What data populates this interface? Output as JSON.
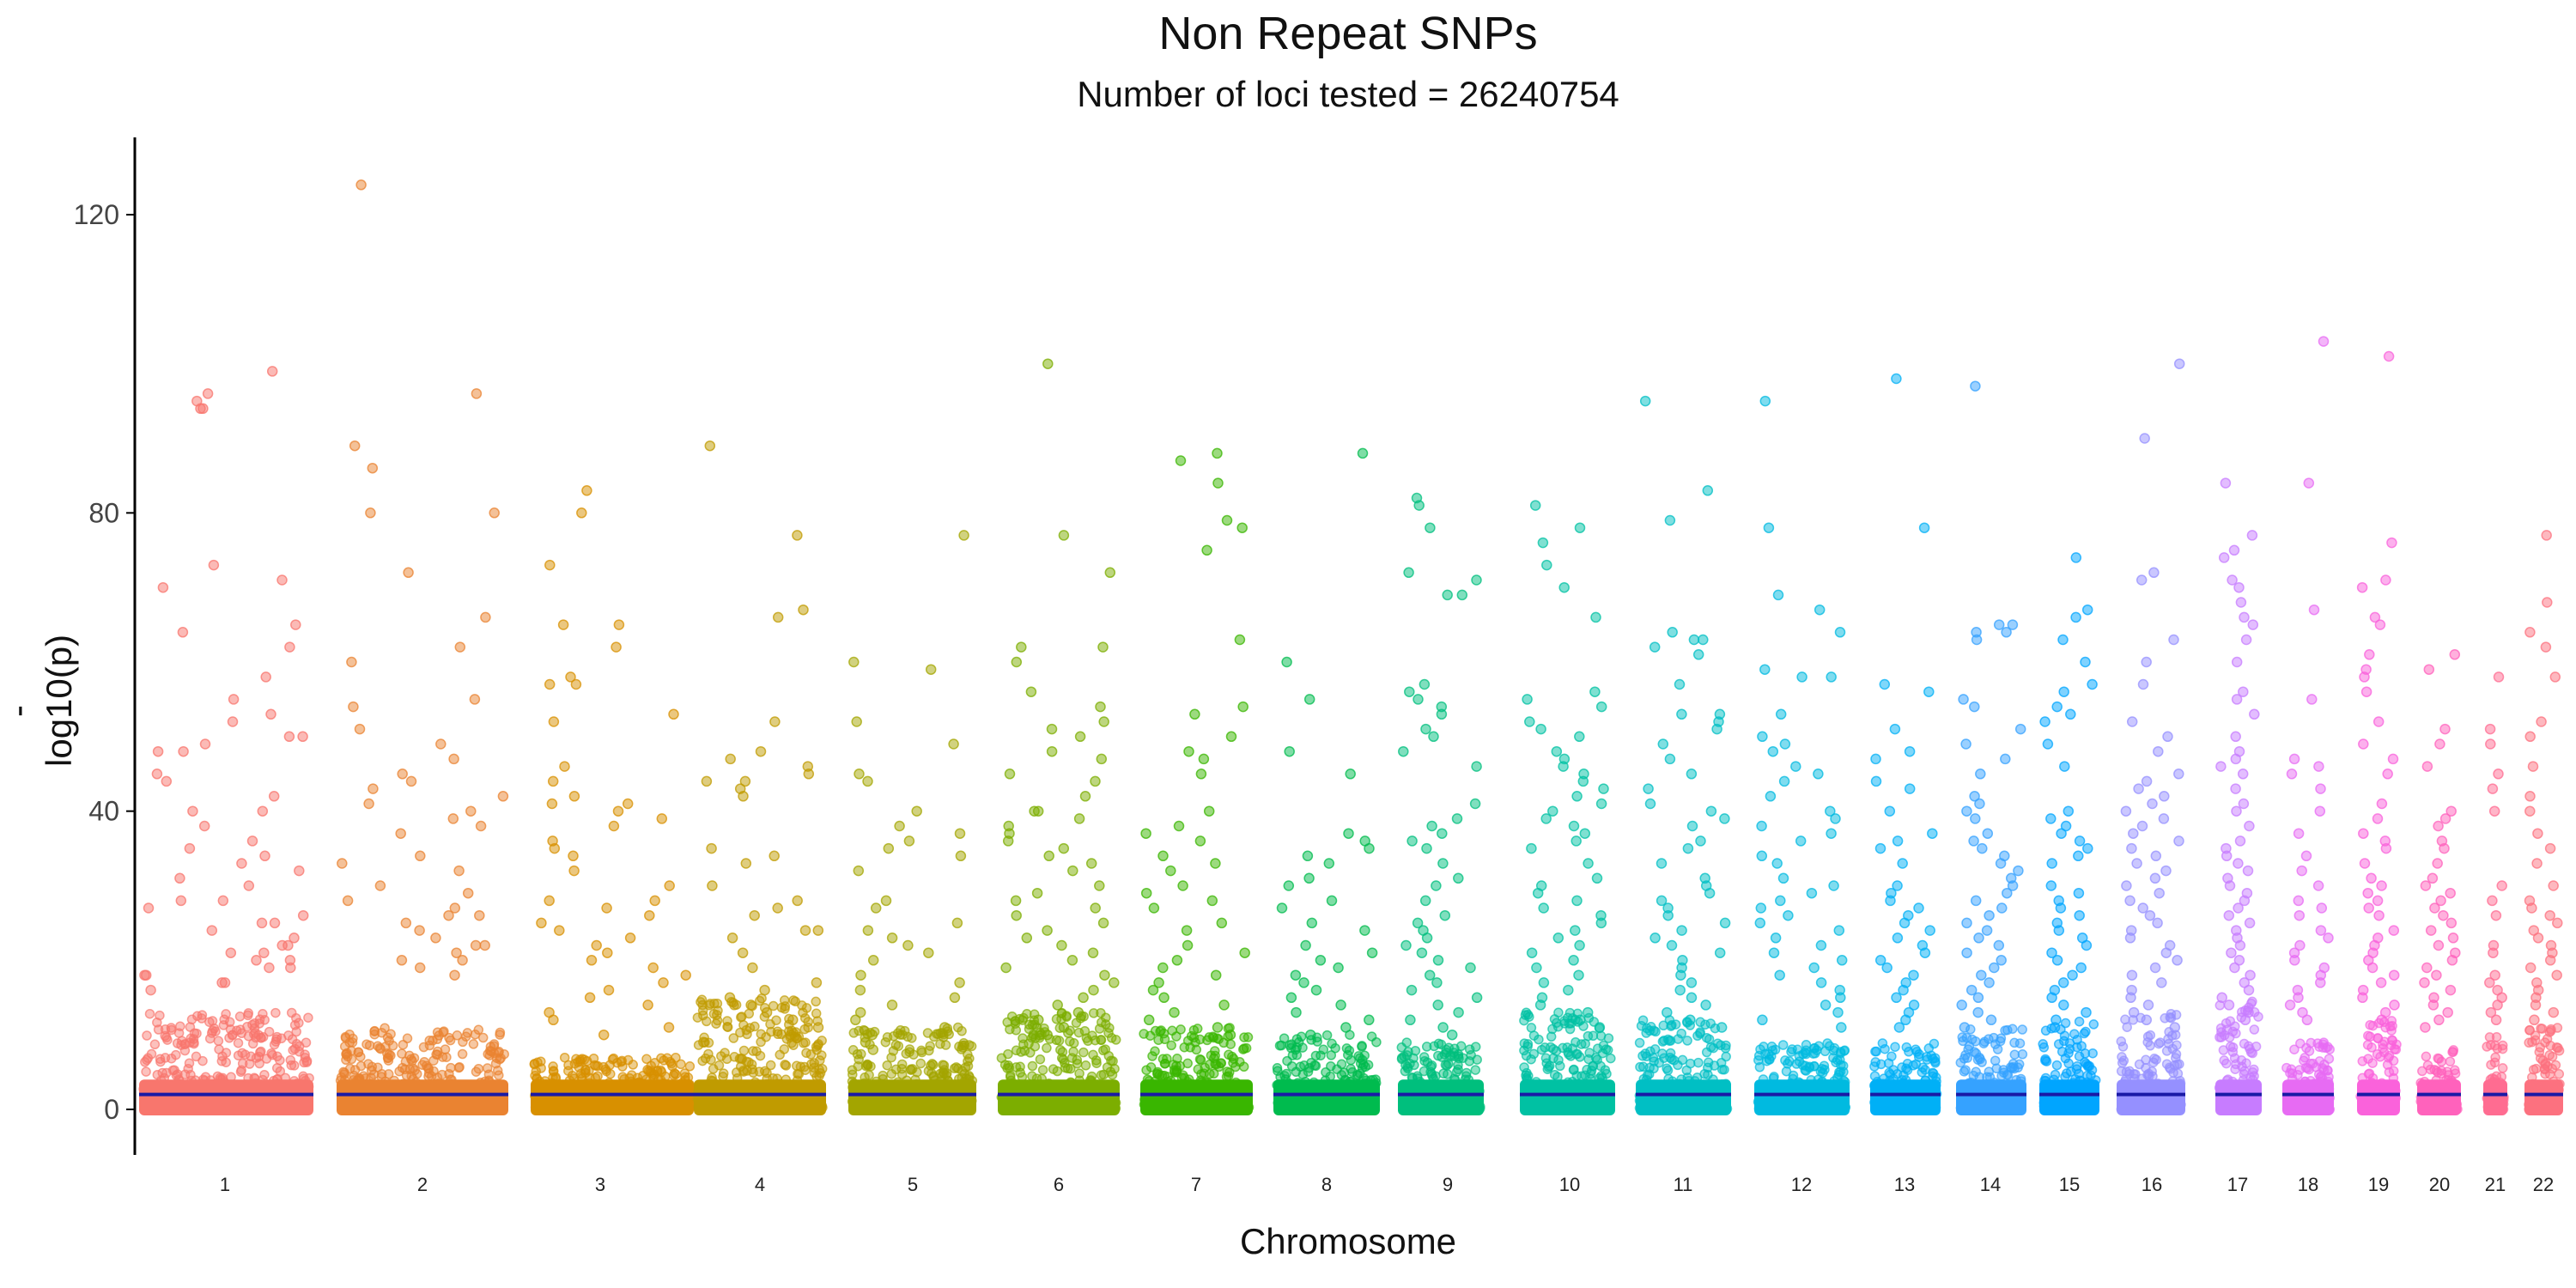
{
  "chart_data": {
    "type": "scatter",
    "title": "Non Repeat SNPs",
    "subtitle": "Number of loci tested = 26240754",
    "xlabel": "Chromosome",
    "ylabel": "-log10(p)",
    "ylim": [
      -6,
      130
    ],
    "yticks": [
      0,
      40,
      80,
      120
    ],
    "grid": false,
    "legend": "none",
    "threshold_line": {
      "value": 2,
      "color": "#1a1aa6"
    },
    "chromosomes": [
      {
        "label": "1",
        "color": "#F8766D",
        "top": [
          99,
          95,
          94,
          96,
          94,
          73,
          71,
          70,
          65,
          64,
          62,
          58,
          55,
          53,
          52,
          50,
          50,
          49,
          48,
          48,
          45,
          44,
          42,
          40,
          40,
          38,
          36,
          35,
          34,
          33,
          32,
          31,
          30,
          28,
          28,
          27,
          26,
          25,
          25,
          24,
          23,
          22,
          22,
          21,
          21,
          20,
          20,
          19,
          19,
          18,
          18,
          17,
          17,
          16
        ]
      },
      {
        "label": "2",
        "color": "#EA8331",
        "top": [
          124,
          96,
          89,
          86,
          80,
          80,
          72,
          66,
          62,
          60,
          55,
          54,
          51,
          49,
          47,
          45,
          44,
          43,
          42,
          41,
          40,
          39,
          38,
          37,
          34,
          33,
          32,
          30,
          29,
          28,
          27,
          26,
          26,
          25,
          24,
          23,
          22,
          22,
          21,
          20,
          20,
          19,
          18
        ]
      },
      {
        "label": "3",
        "color": "#D89000",
        "top": [
          83,
          80,
          73,
          65,
          65,
          62,
          58,
          57,
          57,
          53,
          52,
          46,
          44,
          42,
          41,
          41,
          40,
          39,
          38,
          36,
          35,
          34,
          32,
          30,
          28,
          28,
          27,
          26,
          25,
          24,
          23,
          22,
          21,
          20,
          19,
          18,
          17,
          16,
          15,
          14,
          13,
          12,
          11,
          10
        ]
      },
      {
        "label": "4",
        "color": "#C09B00",
        "top": [
          89,
          77,
          67,
          66,
          52,
          48,
          47,
          46,
          45,
          44,
          44,
          43,
          42,
          35,
          34,
          33,
          30,
          28,
          27,
          26,
          24,
          24,
          23,
          21,
          19,
          17,
          16,
          15,
          14,
          13,
          12,
          11,
          10,
          9
        ]
      },
      {
        "label": "5",
        "color": "#A3A500",
        "top": [
          77,
          60,
          59,
          52,
          49,
          45,
          44,
          40,
          38,
          37,
          36,
          35,
          34,
          32,
          28,
          27,
          25,
          24,
          23,
          22,
          21,
          20,
          18,
          17,
          16,
          15,
          14,
          13,
          12,
          11,
          10,
          9,
          8
        ]
      },
      {
        "label": "6",
        "color": "#7CAE00",
        "top": [
          100,
          77,
          72,
          62,
          62,
          60,
          56,
          54,
          52,
          51,
          50,
          48,
          47,
          45,
          44,
          42,
          40,
          40,
          39,
          38,
          37,
          36,
          35,
          34,
          33,
          32,
          30,
          29,
          28,
          27,
          26,
          25,
          24,
          23,
          22,
          21,
          20,
          19,
          18,
          17,
          16,
          15,
          14,
          13,
          12,
          11,
          10
        ]
      },
      {
        "label": "7",
        "color": "#39B600",
        "top": [
          88,
          87,
          84,
          79,
          78,
          75,
          63,
          54,
          53,
          50,
          48,
          47,
          45,
          40,
          38,
          37,
          36,
          34,
          33,
          32,
          30,
          29,
          28,
          27,
          25,
          24,
          22,
          21,
          20,
          19,
          18,
          17,
          16,
          15,
          14,
          13,
          12,
          11,
          10
        ]
      },
      {
        "label": "8",
        "color": "#00BB4E",
        "top": [
          88,
          60,
          55,
          48,
          45,
          37,
          36,
          35,
          34,
          33,
          31,
          30,
          28,
          27,
          25,
          24,
          22,
          21,
          20,
          19,
          18,
          17,
          16,
          15,
          14,
          13,
          12,
          11,
          10
        ]
      },
      {
        "label": "9",
        "color": "#00BF7D",
        "top": [
          82,
          81,
          78,
          72,
          71,
          69,
          69,
          57,
          56,
          55,
          54,
          53,
          51,
          50,
          48,
          46,
          41,
          39,
          38,
          37,
          36,
          35,
          33,
          31,
          30,
          28,
          26,
          25,
          24,
          23,
          22,
          21,
          20,
          19,
          18,
          17,
          16,
          15,
          14,
          13,
          12,
          11,
          10
        ]
      },
      {
        "label": "10",
        "color": "#00C1A3",
        "top": [
          81,
          78,
          76,
          73,
          70,
          66,
          56,
          55,
          54,
          52,
          51,
          50,
          48,
          47,
          46,
          45,
          44,
          43,
          42,
          41,
          40,
          39,
          38,
          37,
          36,
          35,
          33,
          31,
          30,
          29,
          28,
          27,
          26,
          25,
          24,
          23,
          22,
          21,
          20,
          19,
          18,
          17,
          16,
          15,
          14,
          13,
          12,
          11
        ]
      },
      {
        "label": "11",
        "color": "#00BFC4",
        "top": [
          95,
          83,
          79,
          64,
          63,
          63,
          62,
          61,
          57,
          53,
          53,
          52,
          51,
          49,
          47,
          45,
          43,
          41,
          40,
          39,
          38,
          36,
          35,
          33,
          31,
          30,
          29,
          28,
          27,
          26,
          25,
          24,
          23,
          22,
          21,
          20,
          19,
          18,
          17,
          16,
          15,
          14,
          13,
          12,
          11
        ]
      },
      {
        "label": "12",
        "color": "#00BAE0",
        "top": [
          95,
          78,
          69,
          67,
          64,
          59,
          58,
          58,
          53,
          50,
          49,
          48,
          46,
          45,
          44,
          42,
          40,
          39,
          38,
          37,
          36,
          34,
          33,
          31,
          30,
          29,
          28,
          27,
          26,
          25,
          24,
          23,
          22,
          21,
          20,
          19,
          18,
          17,
          16,
          15,
          14,
          13,
          12,
          11
        ]
      },
      {
        "label": "13",
        "color": "#00B0F6",
        "top": [
          98,
          78,
          57,
          56,
          51,
          48,
          47,
          44,
          43,
          40,
          37,
          36,
          35,
          33,
          30,
          29,
          28,
          27,
          26,
          25,
          24,
          23,
          22,
          21,
          20,
          19,
          18,
          17,
          16,
          15,
          14,
          13,
          12,
          11
        ]
      },
      {
        "label": "14",
        "color": "#35A2FF",
        "top": [
          97,
          65,
          65,
          64,
          64,
          63,
          55,
          54,
          51,
          49,
          47,
          45,
          42,
          41,
          40,
          39,
          37,
          36,
          35,
          34,
          33,
          32,
          31,
          30,
          29,
          28,
          27,
          26,
          25,
          24,
          23,
          22,
          21,
          20,
          19,
          18,
          17,
          16,
          15,
          14,
          13,
          12,
          11
        ]
      },
      {
        "label": "15",
        "color": "#00A5FF",
        "top": [
          74,
          67,
          66,
          63,
          60,
          57,
          56,
          54,
          53,
          52,
          49,
          46,
          40,
          39,
          38,
          37,
          36,
          35,
          34,
          33,
          30,
          29,
          28,
          27,
          26,
          25,
          24,
          23,
          22,
          21,
          20,
          19,
          18,
          17,
          16,
          15,
          14,
          13,
          12,
          11
        ]
      },
      {
        "label": "16",
        "color": "#9590FF",
        "top": [
          100,
          90,
          72,
          71,
          63,
          60,
          57,
          52,
          50,
          48,
          45,
          44,
          43,
          42,
          41,
          40,
          39,
          38,
          37,
          36,
          35,
          34,
          33,
          32,
          31,
          30,
          29,
          28,
          27,
          26,
          25,
          24,
          23,
          22,
          21,
          20,
          19,
          18,
          17,
          16,
          15,
          14,
          13,
          12,
          11
        ]
      },
      {
        "label": "17",
        "color": "#C77CFF",
        "top": [
          84,
          77,
          75,
          74,
          71,
          70,
          68,
          66,
          65,
          63,
          60,
          56,
          55,
          53,
          50,
          48,
          47,
          46,
          45,
          43,
          41,
          40,
          38,
          36,
          35,
          34,
          33,
          32,
          31,
          30,
          29,
          28,
          27,
          26,
          25,
          24,
          23,
          22,
          21,
          20,
          19,
          18,
          17,
          16,
          15,
          14,
          13,
          12
        ]
      },
      {
        "label": "18",
        "color": "#E76BF3",
        "top": [
          103,
          84,
          67,
          55,
          47,
          46,
          45,
          43,
          40,
          37,
          34,
          32,
          30,
          28,
          27,
          26,
          24,
          23,
          22,
          21,
          20,
          19,
          18,
          17,
          16,
          15,
          14,
          13,
          12
        ]
      },
      {
        "label": "19",
        "color": "#FA62DB",
        "top": [
          101,
          76,
          71,
          70,
          66,
          65,
          61,
          59,
          58,
          56,
          52,
          49,
          47,
          45,
          41,
          39,
          37,
          36,
          35,
          33,
          31,
          30,
          29,
          28,
          27,
          26,
          24,
          23,
          22,
          21,
          20,
          19,
          18,
          17,
          16,
          15,
          14,
          13,
          12
        ]
      },
      {
        "label": "20",
        "color": "#FF62BC",
        "top": [
          61,
          59,
          51,
          49,
          46,
          40,
          39,
          38,
          36,
          35,
          33,
          31,
          30,
          29,
          28,
          27,
          26,
          25,
          24,
          23,
          22,
          21,
          20,
          19,
          18,
          17,
          16,
          15,
          14,
          13,
          12,
          11
        ]
      },
      {
        "label": "21",
        "color": "#FF6C91",
        "top": [
          58,
          51,
          49,
          45,
          43,
          40,
          30,
          28,
          26,
          22,
          21,
          18,
          17,
          16,
          15,
          14,
          13,
          12
        ]
      },
      {
        "label": "22",
        "color": "#FC717F",
        "top": [
          77,
          68,
          64,
          62,
          58,
          52,
          50,
          46,
          42,
          40,
          37,
          35,
          33,
          30,
          28,
          27,
          26,
          25,
          24,
          23,
          22,
          21,
          20,
          19,
          18,
          17,
          16,
          15,
          14,
          13,
          12
        ]
      }
    ]
  }
}
